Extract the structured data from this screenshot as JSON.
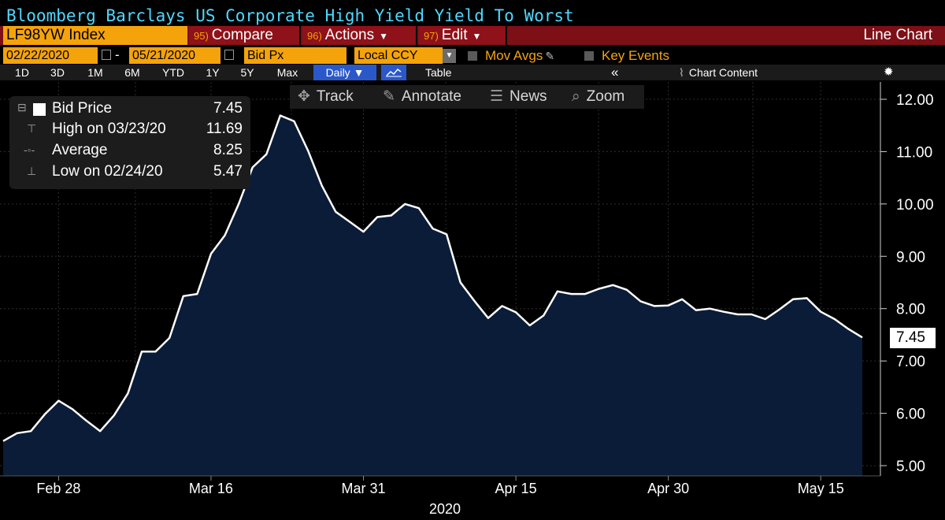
{
  "header": {
    "title": "Bloomberg Barclays US Corporate High Yield Yield To Worst",
    "ticker": "LF98YW Index",
    "compare": {
      "num": "95)",
      "label": "Compare"
    },
    "actions": {
      "num": "96)",
      "label": "Actions"
    },
    "edit": {
      "num": "97)",
      "label": "Edit"
    },
    "chart_type": "Line Chart"
  },
  "controls": {
    "start_date": "02/22/2020",
    "end_date": "05/21/2020",
    "field": "Bid Px",
    "currency": "Local CCY",
    "mov_avgs": "Mov Avgs",
    "key_events": "Key Events"
  },
  "timeframes": [
    "1D",
    "3D",
    "1M",
    "6M",
    "YTD",
    "1Y",
    "5Y",
    "Max"
  ],
  "frequency": "Daily",
  "table_label": "Table",
  "collapse_glyph": "«",
  "chart_content_label": "Chart Content",
  "tools": [
    "Track",
    "Annotate",
    "News",
    "Zoom"
  ],
  "legend": {
    "bid_label": "Bid Price",
    "bid_value": "7.45",
    "high_label": "High on 03/23/20",
    "high_value": "11.69",
    "avg_label": "Average",
    "avg_value": "8.25",
    "low_label": "Low on 02/24/20",
    "low_value": "5.47"
  },
  "last_price": "7.45",
  "colors": {
    "line": "#ffffff",
    "fill": "#0a1c38",
    "accent": "#f5a30a",
    "menu": "#8f1119",
    "title": "#4fd8ff"
  },
  "chart_data": {
    "type": "area",
    "x_tick_labels": [
      "Feb 28",
      "Mar 16",
      "Mar 31",
      "Apr 15",
      "Apr 30",
      "May 15"
    ],
    "x_tick_index": [
      4,
      15,
      26,
      37,
      48,
      59
    ],
    "year_label": "2020",
    "ylim": [
      4.9,
      12.3
    ],
    "y_ticks": [
      "5.00",
      "6.00",
      "7.00",
      "8.00",
      "9.00",
      "10.00",
      "11.00",
      "12.00"
    ],
    "y_tick_values": [
      5,
      6,
      7,
      8,
      9,
      10,
      11,
      12
    ],
    "series": [
      {
        "values": [
          5.47,
          5.62,
          5.66,
          5.98,
          6.24,
          6.08,
          5.86,
          5.66,
          5.96,
          6.38,
          7.18,
          7.18,
          7.44,
          8.24,
          8.28,
          9.05,
          9.4,
          10.0,
          10.7,
          10.95,
          11.69,
          11.58,
          11.02,
          10.35,
          9.85,
          9.66,
          9.47,
          9.75,
          9.78,
          10.0,
          9.92,
          9.53,
          9.42,
          8.5,
          8.15,
          7.82,
          8.05,
          7.93,
          7.68,
          7.87,
          8.33,
          8.28,
          8.28,
          8.38,
          8.45,
          8.36,
          8.14,
          8.05,
          8.06,
          8.18,
          7.97,
          8.0,
          7.94,
          7.89,
          7.89,
          7.8,
          7.98,
          8.18,
          8.2,
          7.94,
          7.8,
          7.61,
          7.45
        ]
      }
    ],
    "grid": true,
    "legend_position": "top-left"
  }
}
